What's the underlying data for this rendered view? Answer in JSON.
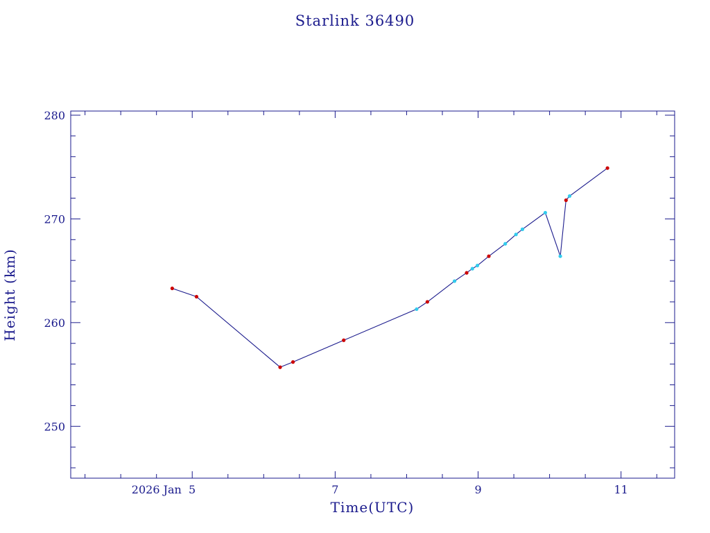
{
  "chart_data": {
    "type": "line",
    "title": "Starlink 36490",
    "xlabel": "Time(UTC)",
    "ylabel": "Height (km)",
    "x_axis": {
      "unit": "days since 2026 Jan 4 00:00 UTC",
      "range": [
        3.3,
        11.75
      ],
      "major_ticks": [
        {
          "value": 5,
          "label": "2026 Jan  5"
        },
        {
          "value": 7,
          "label": "7"
        },
        {
          "value": 9,
          "label": "9"
        },
        {
          "value": 11,
          "label": "11"
        }
      ],
      "minor_step": 0.5
    },
    "y_axis": {
      "range": [
        245,
        280.4
      ],
      "major_ticks": [
        {
          "value": 250,
          "label": "250"
        },
        {
          "value": 260,
          "label": "260"
        },
        {
          "value": 270,
          "label": "270"
        },
        {
          "value": 280,
          "label": "280"
        }
      ],
      "minor_step": 2
    },
    "grid": false,
    "colors": {
      "frame": "#1a1a8c",
      "line": "#1a1a8c",
      "red_marker": "#cc0000",
      "cyan_marker": "#33ccee",
      "text": "#1a1a8c",
      "background": "#ffffff"
    },
    "points": [
      {
        "x": 4.72,
        "y": 263.3,
        "marker": "red"
      },
      {
        "x": 5.06,
        "y": 262.5,
        "marker": "red"
      },
      {
        "x": 6.23,
        "y": 255.7,
        "marker": "red"
      },
      {
        "x": 6.41,
        "y": 256.2,
        "marker": "red"
      },
      {
        "x": 7.12,
        "y": 258.3,
        "marker": "red"
      },
      {
        "x": 8.14,
        "y": 261.3,
        "marker": "cyan"
      },
      {
        "x": 8.29,
        "y": 262.0,
        "marker": "red"
      },
      {
        "x": 8.67,
        "y": 264.0,
        "marker": "cyan"
      },
      {
        "x": 8.84,
        "y": 264.8,
        "marker": "red"
      },
      {
        "x": 8.92,
        "y": 265.2,
        "marker": "cyan"
      },
      {
        "x": 8.99,
        "y": 265.5,
        "marker": "cyan"
      },
      {
        "x": 9.15,
        "y": 266.4,
        "marker": "red"
      },
      {
        "x": 9.38,
        "y": 267.6,
        "marker": "cyan"
      },
      {
        "x": 9.53,
        "y": 268.5,
        "marker": "cyan"
      },
      {
        "x": 9.62,
        "y": 269.0,
        "marker": "cyan"
      },
      {
        "x": 9.94,
        "y": 270.6,
        "marker": "cyan"
      },
      {
        "x": 10.15,
        "y": 266.4,
        "marker": "cyan"
      },
      {
        "x": 10.23,
        "y": 271.8,
        "marker": "red"
      },
      {
        "x": 10.28,
        "y": 272.2,
        "marker": "cyan"
      },
      {
        "x": 10.81,
        "y": 274.9,
        "marker": "red"
      }
    ]
  }
}
